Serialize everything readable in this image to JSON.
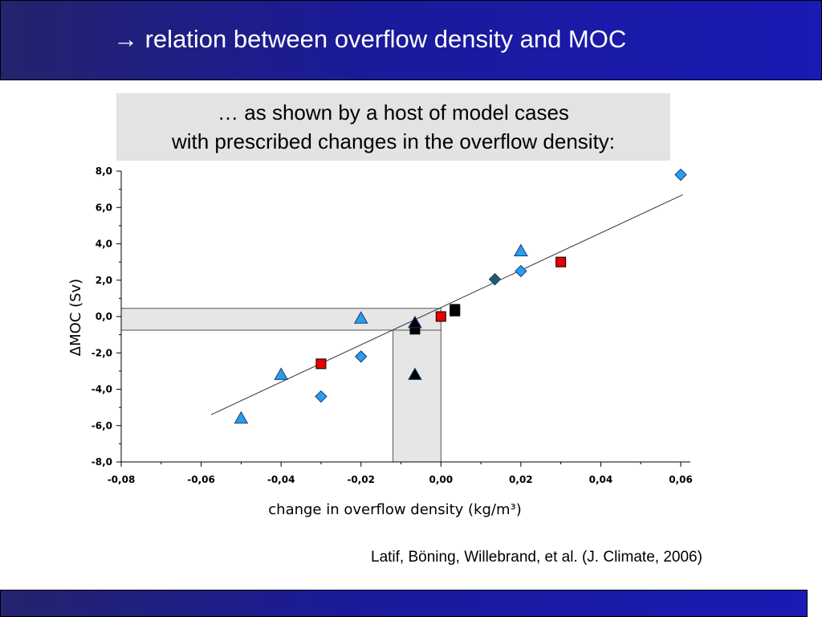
{
  "slide": {
    "title": "→ relation between overflow density and MOC",
    "subtitle_line1": "… as shown by a host of model cases",
    "subtitle_line2": "with prescribed changes in the overflow density:",
    "citation": "Latif, Böning, Willebrand, et al. (J. Climate, 2006)"
  },
  "chart_data": {
    "type": "scatter",
    "xlabel": "change in overflow density (kg/m³)",
    "ylabel": "ΔMOC (Sv)",
    "xlim": [
      -0.08,
      0.06
    ],
    "ylim": [
      -8.0,
      8.0
    ],
    "x_ticks": [
      "-0,08",
      "-0,06",
      "-0,04",
      "-0,02",
      "0,00",
      "0,02",
      "0,04",
      "0,06"
    ],
    "x_tick_values": [
      -0.08,
      -0.06,
      -0.04,
      -0.02,
      0.0,
      0.02,
      0.04,
      0.06
    ],
    "y_ticks": [
      "8,0",
      "6,0",
      "4,0",
      "2,0",
      "0,0",
      "-2,0",
      "-4,0",
      "-6,0",
      "-8,0"
    ],
    "y_tick_values": [
      8,
      6,
      4,
      2,
      0,
      -2,
      -4,
      -6,
      -8
    ],
    "series": [
      {
        "marker": "triangle",
        "color": "#2a9de8",
        "points": [
          [
            -0.05,
            -5.6
          ],
          [
            -0.04,
            -3.2
          ],
          [
            -0.02,
            -0.1
          ],
          [
            0.02,
            3.6
          ]
        ]
      },
      {
        "marker": "diamond",
        "color": "#2a9de8",
        "points": [
          [
            -0.03,
            -4.4
          ],
          [
            -0.02,
            -2.2
          ],
          [
            0.02,
            2.5
          ],
          [
            0.06,
            7.8
          ]
        ]
      },
      {
        "marker": "diamond",
        "color": "#1f5f63",
        "points": [
          [
            0.0135,
            2.05
          ]
        ]
      },
      {
        "marker": "square",
        "color": "#e60000",
        "points": [
          [
            -0.03,
            -2.6
          ],
          [
            0.0,
            0.0
          ],
          [
            0.03,
            3.0
          ]
        ]
      },
      {
        "marker": "square",
        "color": "#000000",
        "points": [
          [
            -0.0065,
            -0.7
          ],
          [
            0.0035,
            0.4
          ],
          [
            0.0035,
            0.3
          ]
        ]
      },
      {
        "marker": "triangle",
        "color": "#000000",
        "points": [
          [
            -0.0065,
            -0.35
          ],
          [
            -0.0065,
            -3.2
          ]
        ]
      }
    ],
    "fit_line": {
      "x": [
        -0.0575,
        0.0605
      ],
      "y": [
        -5.4,
        6.7
      ]
    },
    "shaded_regions": [
      {
        "x": [
          -0.08,
          0.0
        ],
        "y": [
          -0.75,
          0.45
        ]
      },
      {
        "x": [
          -0.012,
          0.0
        ],
        "y": [
          -8.0,
          -0.75
        ]
      }
    ],
    "grid": false,
    "legend": "none"
  },
  "colors": {
    "title_bar": "#1a1a9a",
    "subtitle_bg": "#e3e3e3",
    "shade": "#e6e6e6"
  }
}
